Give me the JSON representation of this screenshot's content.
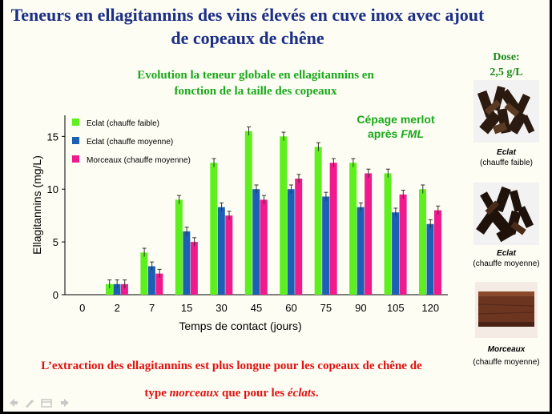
{
  "slide": {
    "title_line1": "Teneurs en ellagitannins des vins élevés en cuve inox avec ajout",
    "title_line2": "de copeaux de chêne",
    "conclusion": {
      "part1": "L’extraction des ellagitannins est plus longue",
      "part2": " pour les copeaux de chêne de",
      "part3": "type",
      "part4": "morceaux",
      "part5": "que pour les",
      "part6": "éclats",
      "part7": "."
    }
  },
  "sidebar": {
    "dose_label": "Dose:",
    "dose_value": "2,5 g/L",
    "photos": [
      {
        "name": "Eclat",
        "detail": "(chauffe faible)"
      },
      {
        "name": "Eclat",
        "detail": "(chauffe moyenne)"
      },
      {
        "name": "Morceaux",
        "detail": "(chauffe moyenne)"
      }
    ]
  },
  "colors": {
    "title": "#1c2f86",
    "green_text": "#1aa81a",
    "red_text": "#e01010"
  },
  "icons": [
    "nav-back-icon",
    "pen-icon",
    "menu-icon",
    "nav-forward-icon"
  ],
  "chart_data": {
    "type": "bar",
    "title_line1": "Evolution la teneur globale en ellagitannins en",
    "title_line2": "fonction de la taille des copeaux",
    "annotation_line1": "Cépage merlot",
    "annotation_line2_prefix": "après",
    "annotation_line2_italic": "FML",
    "xlabel": "Temps de contact (jours)",
    "ylabel": "Ellagitannins (mg/L)",
    "ylim": [
      0,
      17
    ],
    "yticks": [
      0,
      5,
      10,
      15
    ],
    "categories": [
      "0",
      "2",
      "7",
      "15",
      "30",
      "45",
      "60",
      "75",
      "90",
      "105",
      "120"
    ],
    "legend_position": "top-left",
    "grid": false,
    "error_bars": true,
    "series": [
      {
        "name": "Eclat (chauffe faible)",
        "color": "#5ef01e",
        "values": [
          0,
          1.0,
          4.0,
          9.0,
          12.5,
          15.5,
          15.0,
          14.0,
          12.5,
          11.5,
          10.0
        ]
      },
      {
        "name": "Eclat (chauffe moyenne)",
        "color": "#1d5fb5",
        "values": [
          0,
          1.0,
          2.7,
          6.0,
          8.3,
          10.0,
          10.0,
          9.3,
          8.3,
          7.8,
          6.7
        ]
      },
      {
        "name": "Morceaux (chauffe moyenne)",
        "color": "#f01a8c",
        "values": [
          0,
          1.0,
          2.0,
          5.0,
          7.5,
          9.0,
          11.0,
          12.5,
          11.5,
          9.5,
          8.0
        ]
      }
    ]
  }
}
